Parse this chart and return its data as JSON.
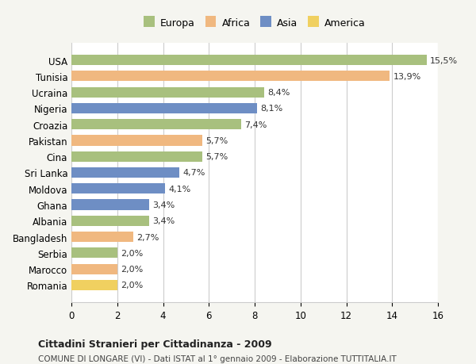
{
  "countries": [
    "Romania",
    "Marocco",
    "Serbia",
    "Bangladesh",
    "Albania",
    "Ghana",
    "Moldova",
    "Sri Lanka",
    "Cina",
    "Pakistan",
    "Croazia",
    "Nigeria",
    "Ucraina",
    "Tunisia",
    "USA"
  ],
  "values": [
    15.5,
    13.9,
    8.4,
    8.1,
    7.4,
    5.7,
    5.7,
    4.7,
    4.1,
    3.4,
    3.4,
    2.7,
    2.0,
    2.0,
    2.0
  ],
  "labels": [
    "15,5%",
    "13,9%",
    "8,4%",
    "8,1%",
    "7,4%",
    "5,7%",
    "5,7%",
    "4,7%",
    "4,1%",
    "3,4%",
    "3,4%",
    "2,7%",
    "2,0%",
    "2,0%",
    "2,0%"
  ],
  "continents": [
    "Europa",
    "Africa",
    "Europa",
    "Asia",
    "Europa",
    "Africa",
    "Europa",
    "Asia",
    "Asia",
    "Asia",
    "Europa",
    "Africa",
    "Europa",
    "Africa",
    "America"
  ],
  "colors": {
    "Europa": "#a8c07e",
    "Africa": "#f0b880",
    "Asia": "#6e8ec4",
    "America": "#f0d060"
  },
  "legend_order": [
    "Europa",
    "Africa",
    "Asia",
    "America"
  ],
  "title": "Cittadini Stranieri per Cittadinanza - 2009",
  "subtitle": "COMUNE DI LONGARE (VI) - Dati ISTAT al 1° gennaio 2009 - Elaborazione TUTTITALIA.IT",
  "xlim": [
    0,
    16
  ],
  "xticks": [
    0,
    2,
    4,
    6,
    8,
    10,
    12,
    14,
    16
  ],
  "background_color": "#f5f5f0",
  "bar_background": "#ffffff",
  "grid_color": "#cccccc"
}
